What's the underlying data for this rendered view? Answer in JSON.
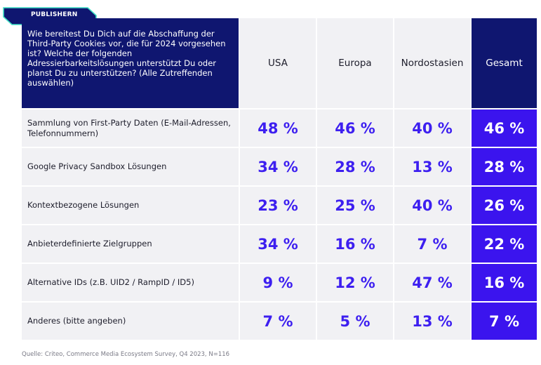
{
  "badge": "PUBLISHERN",
  "chart_data": {
    "type": "table",
    "question": "Wie bereitest Du Dich auf die Abschaffung der Third-Party Cookies vor, die für 2024 vorgesehen ist? Welche der folgenden Adressierbarkeitslösungen unterstützt Du oder planst Du zu unterstützen? (Alle Zutreffenden auswählen)",
    "columns": [
      "USA",
      "Europa",
      "Nordostasien",
      "Gesamt"
    ],
    "rows": [
      {
        "label": "Sammlung von First-Party Daten (E-Mail-Adressen, Telefonnummern)",
        "values": [
          48,
          46,
          40,
          46
        ],
        "display": [
          "48 %",
          "46 %",
          "40 %",
          "46 %"
        ]
      },
      {
        "label": "Google Privacy Sandbox Lösungen",
        "values": [
          34,
          28,
          13,
          28
        ],
        "display": [
          "34 %",
          "28 %",
          "13 %",
          "28 %"
        ]
      },
      {
        "label": "Kontextbezogene Lösungen",
        "values": [
          23,
          25,
          40,
          26
        ],
        "display": [
          "23 %",
          "25 %",
          "40 %",
          "26 %"
        ]
      },
      {
        "label": "Anbieterdefinierte Zielgruppen",
        "values": [
          34,
          16,
          7,
          22
        ],
        "display": [
          "34 %",
          "16 %",
          "7 %",
          "22 %"
        ]
      },
      {
        "label": "Alternative IDs (z.B. UID2 / RampID / ID5)",
        "values": [
          9,
          12,
          47,
          16
        ],
        "display": [
          "9 %",
          "12 %",
          "47 %",
          "16 %"
        ]
      },
      {
        "label": "Anderes (bitte angeben)",
        "values": [
          7,
          5,
          13,
          7
        ],
        "display": [
          "7 %",
          "5 %",
          "13 %",
          "7 %"
        ]
      }
    ]
  },
  "source": "Quelle: Criteo, Commerce Media Ecosystem Survey, Q4 2023, N=116",
  "colors": {
    "header_navy": "#0f1670",
    "total_blue": "#3b14ee",
    "value_text": "#3d1ff0",
    "cell_bg": "#f1f1f4",
    "badge_bg": "#0f1670",
    "badge_border": "#3fe0c5"
  }
}
